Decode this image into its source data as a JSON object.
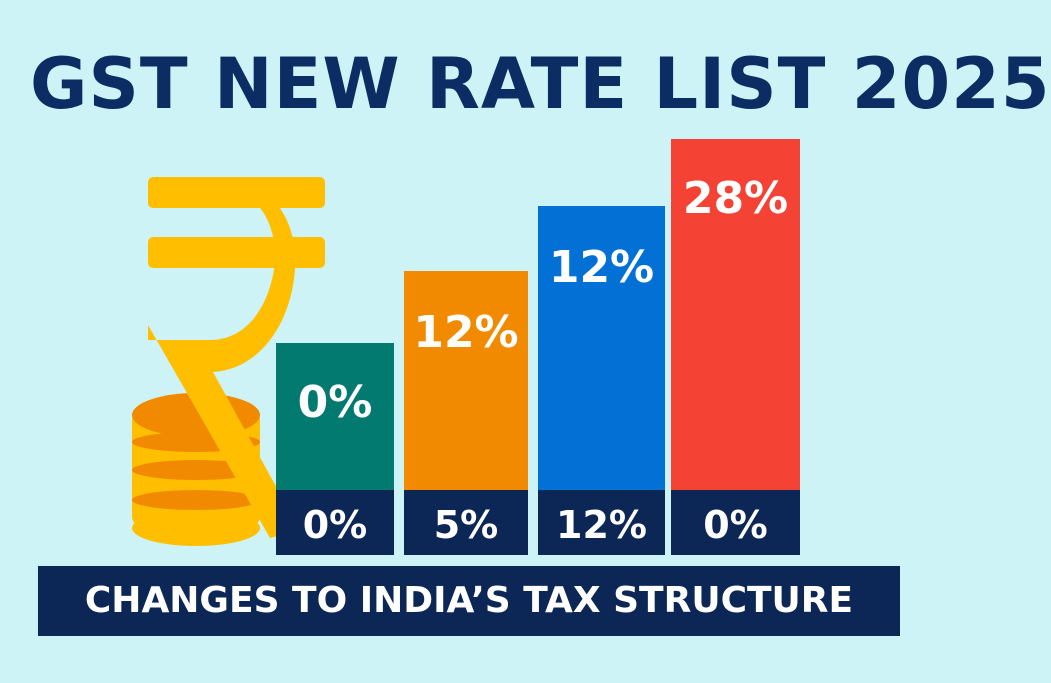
{
  "title": "GST NEW RATE LIST 2025",
  "banner": "CHANGES TO INDIA’S TAX STRUCTURE",
  "colors": {
    "background": "#cdf3f6",
    "title": "#0c2d63",
    "teal": "#037a70",
    "orange": "#f28a00",
    "blue": "#0270d4",
    "red": "#f44334",
    "navy": "#0c2656",
    "gold": "#ffbf00"
  },
  "icons": [
    "rupee-icon",
    "coin-stack-icon"
  ],
  "chart_data": {
    "type": "bar",
    "title": "GST NEW RATE LIST 2025",
    "bars": [
      {
        "top_label": "0%",
        "bottom_label": "0%",
        "color": "#037a70"
      },
      {
        "top_label": "12%",
        "bottom_label": "5%",
        "color": "#f28a00"
      },
      {
        "top_label": "12%",
        "bottom_label": "12%",
        "color": "#0270d4"
      },
      {
        "top_label": "28%",
        "bottom_label": "0%",
        "color": "#f44334"
      }
    ]
  }
}
